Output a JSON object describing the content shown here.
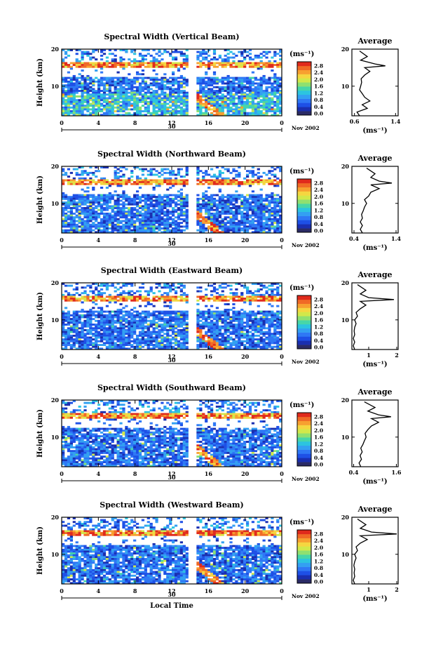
{
  "chart_data": [
    {
      "type": "heatmap",
      "title": "Spectral Width (Vertical Beam)",
      "ylabel": "Height (km)",
      "yticks": [
        "10",
        "20"
      ],
      "xticks": [
        "0",
        "4",
        "8",
        "12",
        "16",
        "20",
        "0"
      ],
      "xlim": [
        0,
        24
      ],
      "ylim": [
        2,
        20
      ],
      "date_marker": "30",
      "date_label": "Nov 2002",
      "colorbar": {
        "unit": "(ms⁻¹)",
        "ticks": [
          "2.8",
          "2.4",
          "2.0",
          "1.6",
          "1.2",
          "0.8",
          "0.4",
          "0.0"
        ]
      },
      "profile": {
        "title": "Average",
        "xlabel": "(ms⁻¹)",
        "xticks": [
          "0.6",
          "1.4"
        ],
        "yticks": [
          "10",
          "20"
        ],
        "x": [
          0.7,
          0.65,
          0.85,
          0.75,
          0.9,
          0.8,
          0.75,
          0.7,
          0.72,
          0.74,
          0.73,
          0.8,
          0.9,
          0.8,
          1.2,
          1.0,
          0.72,
          0.85,
          0.7
        ],
        "y": [
          2,
          3,
          4,
          5,
          6,
          7,
          8,
          9,
          10,
          11,
          12,
          13,
          14,
          15,
          15.5,
          16,
          17,
          18,
          19.5
        ]
      }
    },
    {
      "type": "heatmap",
      "title": "Spectral Width (Northward Beam)",
      "ylabel": "Height (km)",
      "yticks": [
        "10",
        "20"
      ],
      "xticks": [
        "0",
        "4",
        "8",
        "12",
        "16",
        "20",
        "0"
      ],
      "xlim": [
        0,
        24
      ],
      "ylim": [
        2,
        20
      ],
      "date_marker": "30",
      "date_label": "Nov 2002",
      "colorbar": {
        "unit": "(ms⁻¹)",
        "ticks": [
          "2.8",
          "2.4",
          "2.0",
          "1.6",
          "1.2",
          "0.8",
          "0.4",
          "0.0"
        ]
      },
      "profile": {
        "title": "Average",
        "xlabel": "(ms⁻¹)",
        "xticks": [
          "0.4",
          "1.4"
        ],
        "yticks": [
          "10",
          "20"
        ],
        "x": [
          0.6,
          0.55,
          0.6,
          0.55,
          0.6,
          0.58,
          0.62,
          0.65,
          0.7,
          0.65,
          0.75,
          0.8,
          1.0,
          0.8,
          1.3,
          1.0,
          0.8,
          0.9,
          0.7
        ],
        "y": [
          2,
          3,
          4,
          5,
          6,
          7,
          8,
          9,
          10,
          11,
          12,
          13,
          14,
          15,
          15.5,
          16,
          17,
          18,
          19.5
        ]
      }
    },
    {
      "type": "heatmap",
      "title": "Spectral Width (Eastward Beam)",
      "ylabel": "Height (km)",
      "yticks": [
        "10",
        "20"
      ],
      "xticks": [
        "0",
        "4",
        "8",
        "12",
        "16",
        "20",
        "0"
      ],
      "xlim": [
        0,
        24
      ],
      "ylim": [
        2,
        20
      ],
      "date_marker": "30",
      "date_label": "Nov 2002",
      "colorbar": {
        "unit": "(ms⁻¹)",
        "ticks": [
          "2.8",
          "2.4",
          "2.0",
          "1.6",
          "1.2",
          "0.8",
          "0.4",
          "0.0"
        ]
      },
      "profile": {
        "title": "Average",
        "xlabel": "(ms⁻¹)",
        "xticks": [
          "1",
          "2"
        ],
        "yticks": [
          "10",
          "20"
        ],
        "x": [
          0.5,
          0.45,
          0.5,
          0.45,
          0.5,
          0.48,
          0.5,
          0.55,
          0.5,
          0.6,
          0.55,
          0.7,
          0.9,
          0.7,
          1.9,
          1.0,
          0.7,
          0.9,
          0.6
        ],
        "y": [
          2,
          3,
          4,
          5,
          6,
          7,
          8,
          9,
          10,
          11,
          12,
          13,
          14,
          15,
          15.5,
          16,
          17,
          18,
          19.5
        ]
      }
    },
    {
      "type": "heatmap",
      "title": "Spectral Width (Southward Beam)",
      "ylabel": "Height (km)",
      "yticks": [
        "10",
        "20"
      ],
      "xticks": [
        "0",
        "4",
        "8",
        "12",
        "16",
        "20",
        "0"
      ],
      "xlim": [
        0,
        24
      ],
      "ylim": [
        2,
        20
      ],
      "date_marker": "30",
      "date_label": "Nov 2002",
      "colorbar": {
        "unit": "(ms⁻¹)",
        "ticks": [
          "2.8",
          "2.4",
          "2.0",
          "1.6",
          "1.2",
          "0.8",
          "0.4",
          "0.0"
        ]
      },
      "profile": {
        "title": "Average",
        "xlabel": "(ms⁻¹)",
        "xticks": [
          "0.4",
          "1.6"
        ],
        "yticks": [
          "10",
          "20"
        ],
        "x": [
          0.6,
          0.55,
          0.62,
          0.58,
          0.64,
          0.6,
          0.66,
          0.7,
          0.75,
          0.72,
          0.8,
          0.9,
          1.1,
          0.9,
          1.45,
          1.1,
          0.8,
          1.0,
          0.7
        ],
        "y": [
          2,
          3,
          4,
          5,
          6,
          7,
          8,
          9,
          10,
          11,
          12,
          13,
          14,
          15,
          15.5,
          16,
          17,
          18,
          19.5
        ]
      }
    },
    {
      "type": "heatmap",
      "title": "Spectral Width (Westward Beam)",
      "ylabel": "Height (km)",
      "yticks": [
        "10",
        "20"
      ],
      "xticks": [
        "0",
        "4",
        "8",
        "12",
        "16",
        "20",
        "0"
      ],
      "xlim": [
        0,
        24
      ],
      "ylim": [
        2,
        20
      ],
      "date_marker": "30",
      "date_label": "Nov 2002",
      "xlabel": "Local Time",
      "colorbar": {
        "unit": "(ms⁻¹)",
        "ticks": [
          "2.8",
          "2.4",
          "2.0",
          "1.6",
          "1.2",
          "0.8",
          "0.4",
          "0.0"
        ]
      },
      "profile": {
        "title": "Average",
        "xlabel": "(ms⁻¹)",
        "xticks": [
          "1",
          "2"
        ],
        "yticks": [
          "10",
          "20"
        ],
        "x": [
          0.5,
          0.45,
          0.5,
          0.48,
          0.5,
          0.47,
          0.5,
          0.55,
          0.5,
          0.6,
          0.55,
          0.7,
          0.95,
          0.7,
          2.0,
          1.1,
          0.7,
          0.9,
          0.6
        ],
        "y": [
          2,
          3,
          4,
          5,
          6,
          7,
          8,
          9,
          10,
          11,
          12,
          13,
          14,
          15,
          15.5,
          16,
          17,
          18,
          19.5
        ]
      }
    }
  ],
  "colorscale": [
    "#2b2b66",
    "#1a2fb0",
    "#1e50e6",
    "#2f78f5",
    "#33a0f2",
    "#2cc4e0",
    "#47d6a8",
    "#8fe070",
    "#d2e84a",
    "#f5d640",
    "#f7a030",
    "#f06a26",
    "#e02a1c"
  ]
}
